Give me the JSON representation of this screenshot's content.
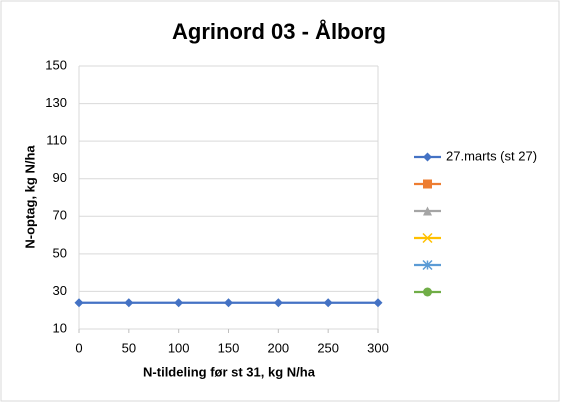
{
  "chart_data": {
    "type": "line",
    "title": "Agrinord 03 - Ålborg",
    "x_label": "N-tildeling før st 31, kg N/ha",
    "y_label": "N-optag, kg N/ha",
    "x": [
      0,
      50,
      100,
      150,
      200,
      250,
      300
    ],
    "series": [
      {
        "name": "27.marts (st 27)",
        "color": "#4472c4",
        "marker": "diamond",
        "values": [
          24,
          24,
          24,
          24,
          24,
          24,
          24
        ]
      },
      {
        "name": null,
        "color": "#ed7d31",
        "marker": "square",
        "values": [
          null,
          null,
          null,
          null,
          null,
          null,
          null
        ]
      },
      {
        "name": null,
        "color": "#a5a5a5",
        "marker": "triangle",
        "values": [
          null,
          null,
          null,
          null,
          null,
          null,
          null
        ]
      },
      {
        "name": null,
        "color": "#ffc000",
        "marker": "x",
        "values": [
          null,
          null,
          null,
          null,
          null,
          null,
          null
        ]
      },
      {
        "name": null,
        "color": "#5b9bd5",
        "marker": "star",
        "values": [
          null,
          null,
          null,
          null,
          null,
          null,
          null
        ]
      },
      {
        "name": null,
        "color": "#70ad47",
        "marker": "circle",
        "values": [
          null,
          null,
          null,
          null,
          null,
          null,
          null
        ]
      }
    ],
    "xlim": [
      0,
      300
    ],
    "xticks": [
      0,
      50,
      100,
      150,
      200,
      250,
      300
    ],
    "ylim": [
      10,
      150
    ],
    "yticks": [
      10,
      30,
      50,
      70,
      90,
      110,
      130,
      150
    ],
    "grid": true,
    "legend": "right"
  }
}
